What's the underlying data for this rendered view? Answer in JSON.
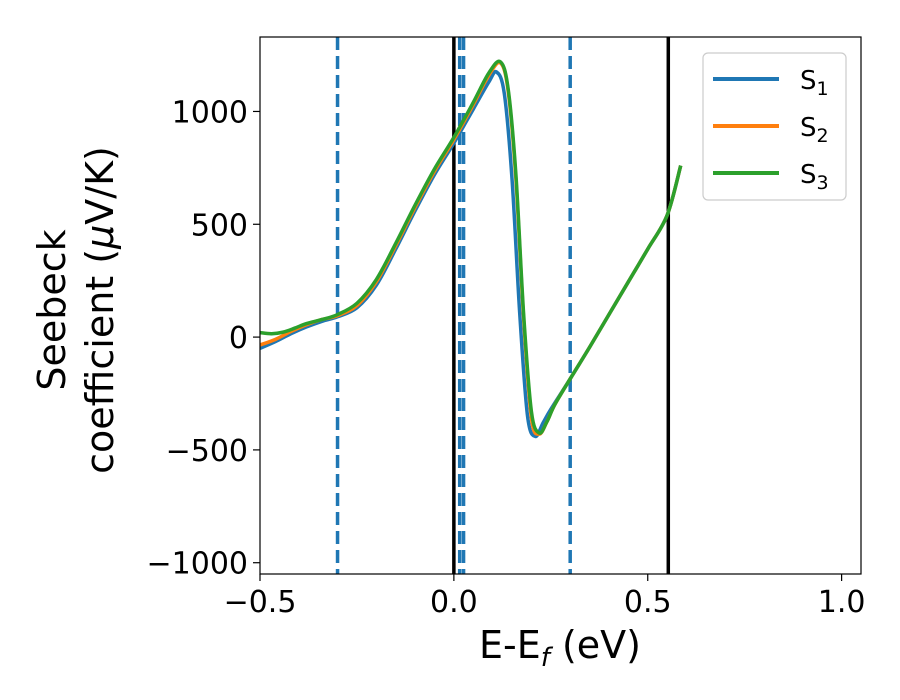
{
  "chart_data": {
    "type": "line",
    "title": "",
    "xlabel": {
      "main": "E-E",
      "sub": "f",
      "tail": " (eV)"
    },
    "ylabel": {
      "line1": "Seebeck",
      "line2_prefix": "coefficient  (",
      "mu": "μ",
      "line2_suffix": "V/K)"
    },
    "xlim": [
      -0.5,
      1.05
    ],
    "ylim": [
      -1050,
      1330
    ],
    "xticks": [
      -0.5,
      0.0,
      0.5,
      1.0
    ],
    "xtick_labels": [
      "−0.5",
      "0.0",
      "0.5",
      "1.0"
    ],
    "yticks": [
      -1000,
      -500,
      0,
      500,
      1000
    ],
    "ytick_labels": [
      "−1000",
      "−500",
      "0",
      "500",
      "1000"
    ],
    "grid": false,
    "legend_placement": "top-right",
    "vertical_lines": [
      {
        "x": -0.3,
        "style": "dashed",
        "color": "#1f77b4"
      },
      {
        "x": 0.0,
        "style": "solid",
        "color": "#000000"
      },
      {
        "x": 0.015,
        "style": "dashed",
        "color": "#1f77b4"
      },
      {
        "x": 0.025,
        "style": "dashed",
        "color": "#1f77b4"
      },
      {
        "x": 0.3,
        "style": "dashed",
        "color": "#1f77b4"
      },
      {
        "x": 0.553,
        "style": "solid",
        "color": "#000000"
      }
    ],
    "series": [
      {
        "name": "S",
        "sub": "1",
        "color": "#1f77b4",
        "x": [
          -0.5,
          -0.46,
          -0.42,
          -0.38,
          -0.34,
          -0.3,
          -0.25,
          -0.2,
          -0.15,
          -0.1,
          -0.05,
          0.0,
          0.05,
          0.09,
          0.11,
          0.13,
          0.15,
          0.17,
          0.19,
          0.21,
          0.23,
          0.25,
          0.3,
          0.35,
          0.4,
          0.45,
          0.5,
          0.55,
          0.585
        ],
        "y": [
          -50,
          -20,
          15,
          45,
          70,
          90,
          130,
          230,
          390,
          560,
          720,
          860,
          1010,
          1130,
          1175,
          1080,
          700,
          100,
          -350,
          -440,
          -380,
          -320,
          -185,
          -45,
          100,
          245,
          390,
          540,
          760
        ]
      },
      {
        "name": "S",
        "sub": "2",
        "color": "#ff7f0e",
        "x": [
          -0.5,
          -0.46,
          -0.42,
          -0.38,
          -0.34,
          -0.3,
          -0.25,
          -0.2,
          -0.15,
          -0.1,
          -0.05,
          0.0,
          0.05,
          0.09,
          0.12,
          0.14,
          0.16,
          0.18,
          0.2,
          0.22,
          0.24,
          0.26,
          0.3,
          0.35,
          0.4,
          0.45,
          0.5,
          0.55,
          0.585
        ],
        "y": [
          -35,
          -10,
          25,
          55,
          78,
          95,
          140,
          245,
          405,
          575,
          735,
          875,
          1030,
          1160,
          1215,
          1090,
          700,
          80,
          -360,
          -430,
          -375,
          -300,
          -185,
          -45,
          100,
          245,
          390,
          540,
          760
        ]
      },
      {
        "name": "S",
        "sub": "3",
        "color": "#2ca02c",
        "x": [
          -0.5,
          -0.47,
          -0.44,
          -0.41,
          -0.38,
          -0.34,
          -0.3,
          -0.25,
          -0.2,
          -0.15,
          -0.1,
          -0.05,
          0.0,
          0.05,
          0.09,
          0.12,
          0.14,
          0.16,
          0.18,
          0.2,
          0.22,
          0.24,
          0.26,
          0.3,
          0.35,
          0.4,
          0.45,
          0.5,
          0.55,
          0.585
        ],
        "y": [
          20,
          15,
          22,
          40,
          60,
          78,
          100,
          150,
          255,
          415,
          585,
          745,
          885,
          1040,
          1170,
          1220,
          1100,
          720,
          100,
          -330,
          -425,
          -375,
          -300,
          -185,
          -45,
          100,
          245,
          390,
          540,
          760
        ]
      }
    ]
  }
}
